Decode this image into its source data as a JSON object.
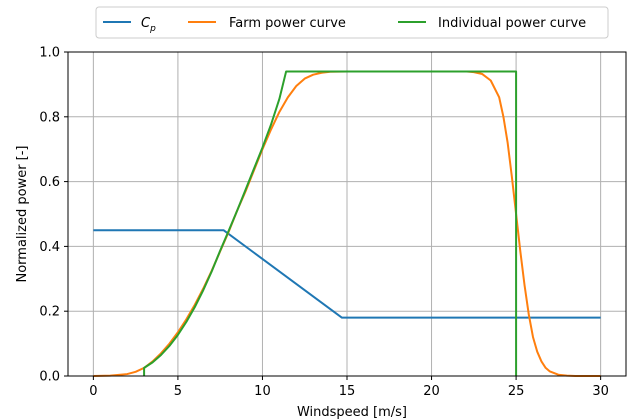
{
  "chart_data": {
    "type": "line",
    "xlabel": "Windspeed [m/s]",
    "ylabel": "Normalized power [-]",
    "xlim": [
      -1.5,
      31.5
    ],
    "ylim": [
      0.0,
      1.0
    ],
    "xticks": [
      0,
      5,
      10,
      15,
      20,
      25,
      30
    ],
    "yticks": [
      0.0,
      0.2,
      0.4,
      0.6,
      0.8,
      1.0
    ],
    "xtick_labels": [
      "0",
      "5",
      "10",
      "15",
      "20",
      "25",
      "30"
    ],
    "ytick_labels": [
      "0.0",
      "0.2",
      "0.4",
      "0.6",
      "0.8",
      "1.0"
    ],
    "grid": true,
    "legend_position": "top-center, above plot",
    "series": [
      {
        "name": "C_p",
        "legend_label": "C",
        "legend_subscript": "p",
        "color": "#1f77b4",
        "x": [
          0,
          7.7,
          14.7,
          30
        ],
        "y": [
          0.45,
          0.45,
          0.18,
          0.18
        ]
      },
      {
        "name": "Farm power curve",
        "legend_label": "Farm power curve",
        "color": "#ff7f0e",
        "x": [
          0,
          1,
          2,
          2.5,
          3,
          3.5,
          4,
          4.5,
          5,
          5.5,
          6,
          6.5,
          7,
          7.5,
          8,
          8.5,
          9,
          9.5,
          10,
          10.5,
          11,
          11.5,
          12,
          12.5,
          13,
          13.5,
          14,
          15,
          16,
          18,
          20,
          22,
          22.5,
          23,
          23.5,
          24,
          24.25,
          24.5,
          24.75,
          25,
          25.25,
          25.5,
          25.75,
          26,
          26.25,
          26.5,
          26.75,
          27,
          27.5,
          28,
          28.5,
          29,
          30
        ],
        "y": [
          0.0,
          0.001,
          0.006,
          0.013,
          0.025,
          0.045,
          0.07,
          0.1,
          0.135,
          0.175,
          0.22,
          0.27,
          0.325,
          0.385,
          0.445,
          0.51,
          0.57,
          0.635,
          0.7,
          0.76,
          0.815,
          0.86,
          0.895,
          0.918,
          0.93,
          0.936,
          0.939,
          0.94,
          0.94,
          0.94,
          0.94,
          0.94,
          0.938,
          0.932,
          0.912,
          0.86,
          0.8,
          0.72,
          0.615,
          0.5,
          0.385,
          0.28,
          0.19,
          0.12,
          0.075,
          0.045,
          0.025,
          0.014,
          0.004,
          0.001,
          0.0,
          0.0,
          0.0
        ]
      },
      {
        "name": "Individual power curve",
        "legend_label": "Individual power curve",
        "color": "#2ca02c",
        "x": [
          3,
          3,
          3.5,
          4,
          4.5,
          5,
          5.5,
          6,
          6.5,
          7,
          7.5,
          8,
          8.5,
          9,
          9.5,
          10,
          10.5,
          11,
          11.4,
          25,
          25
        ],
        "y": [
          0.0,
          0.025,
          0.042,
          0.065,
          0.093,
          0.127,
          0.167,
          0.213,
          0.265,
          0.323,
          0.387,
          0.448,
          0.51,
          0.575,
          0.64,
          0.705,
          0.775,
          0.855,
          0.94,
          0.94,
          0.0
        ]
      }
    ]
  }
}
